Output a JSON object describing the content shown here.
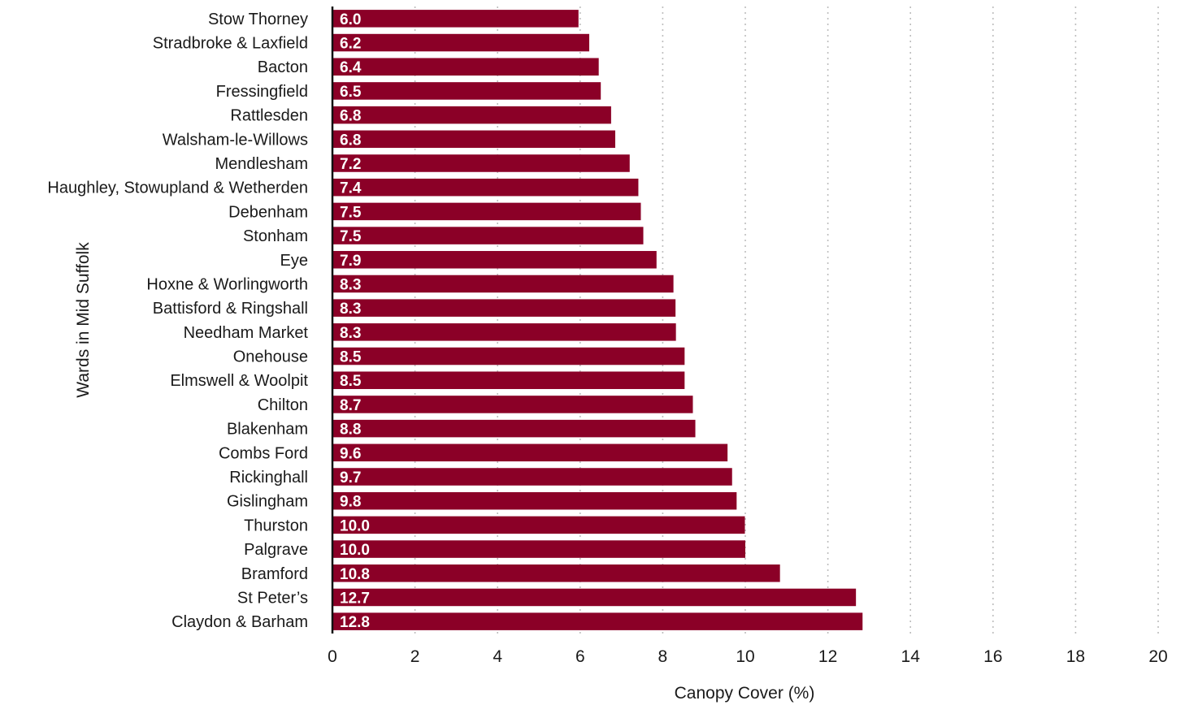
{
  "chart_data": {
    "type": "bar",
    "orientation": "horizontal",
    "categories": [
      "Stow Thorney",
      "Stradbroke & Laxfield",
      "Bacton",
      "Fressingfield",
      "Rattlesden",
      "Walsham-le-Willows",
      "Mendlesham",
      "Haughley, Stowupland & Wetherden",
      "Debenham",
      "Stonham",
      "Eye",
      "Hoxne & Worlingworth",
      "Battisford & Ringshall",
      "Needham Market",
      "Onehouse",
      "Elmswell & Woolpit",
      "Chilton",
      "Blakenham",
      "Combs Ford",
      "Rickinghall",
      "Gislingham",
      "Thurston",
      "Palgrave",
      "Bramford",
      "St Peter’s",
      "Claydon & Barham"
    ],
    "values": [
      5.96,
      6.22,
      6.45,
      6.5,
      6.75,
      6.85,
      7.2,
      7.41,
      7.47,
      7.53,
      7.85,
      8.26,
      8.31,
      8.32,
      8.53,
      8.53,
      8.73,
      8.79,
      9.57,
      9.68,
      9.79,
      9.99,
      10.0,
      10.84,
      12.68,
      12.84
    ],
    "data_labels": [
      "6.0",
      "6.2",
      "6.4",
      "6.5",
      "6.8",
      "6.8",
      "7.2",
      "7.4",
      "7.5",
      "7.5",
      "7.9",
      "8.3",
      "8.3",
      "8.3",
      "8.5",
      "8.5",
      "8.7",
      "8.8",
      "9.6",
      "9.7",
      "9.8",
      "10.0",
      "10.0",
      "10.8",
      "12.7",
      "12.8"
    ],
    "xlabel": "Canopy Cover (%)",
    "ylabel": "Wards in Mid Suffolk",
    "xlim": [
      0,
      20
    ],
    "xticks": [
      0,
      2,
      4,
      6,
      8,
      10,
      12,
      14,
      16,
      18,
      20
    ],
    "grid": "vertical dotted",
    "legend": "none",
    "bar_color": "#8b0027"
  }
}
